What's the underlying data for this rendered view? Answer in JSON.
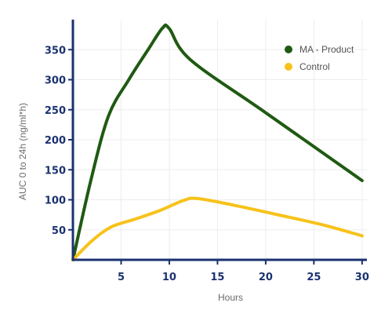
{
  "chart_data": {
    "type": "line",
    "xlabel": "Hours",
    "ylabel": "AUC 0 to 24h (ng/ml*h)",
    "xlim": [
      0,
      30.5
    ],
    "ylim": [
      0,
      400
    ],
    "xticks": [
      5,
      10,
      15,
      20,
      25,
      30
    ],
    "yticks": [
      50,
      100,
      150,
      200,
      250,
      300,
      350
    ],
    "grid": true,
    "legend_position": "top-right",
    "series": [
      {
        "name": "MA - Product",
        "color": "#1f5a12",
        "points": [
          [
            0,
            0
          ],
          [
            1.9,
            135
          ],
          [
            3.7,
            240
          ],
          [
            5.8,
            300
          ],
          [
            7.8,
            350
          ],
          [
            9.3,
            386
          ],
          [
            10,
            385
          ],
          [
            12.2,
            333
          ],
          [
            20,
            245
          ],
          [
            30,
            132
          ]
        ]
      },
      {
        "name": "Control",
        "color": "#f7c21a",
        "points": [
          [
            0,
            0
          ],
          [
            2,
            32
          ],
          [
            4,
            55
          ],
          [
            6.5,
            68
          ],
          [
            9,
            82
          ],
          [
            11.5,
            99
          ],
          [
            13,
            102
          ],
          [
            17,
            90
          ],
          [
            21,
            76
          ],
          [
            26,
            58
          ],
          [
            30,
            40
          ]
        ]
      }
    ]
  }
}
